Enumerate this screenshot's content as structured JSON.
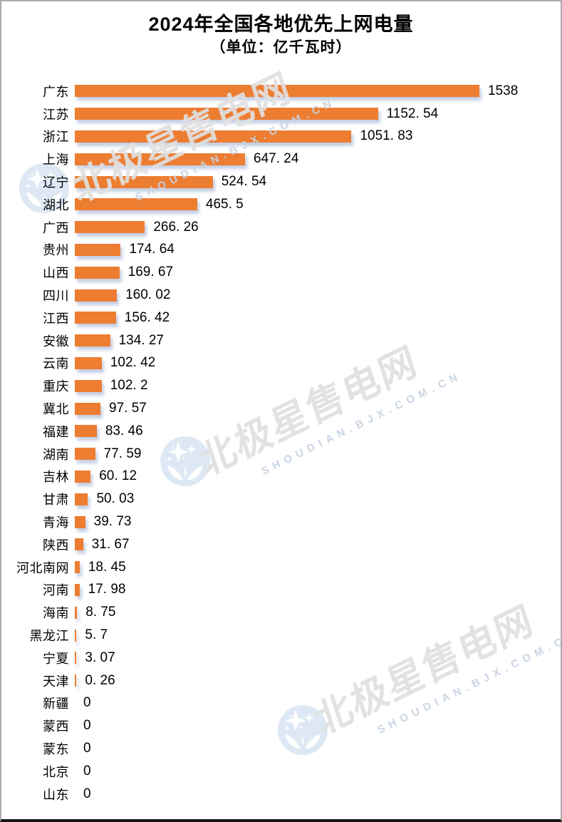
{
  "page": {
    "title": "2024年全国各地优先上网电量",
    "subtitle": "（单位：亿千瓦时）"
  },
  "watermark": {
    "cn": "北极星售电网",
    "en": "SHOUDIAN.BJX.COM.CN",
    "logo": "bjx-star-cloud-logo"
  },
  "colors": {
    "bar": "#ED7D31",
    "bar_shadow": "#96A8D0",
    "watermark_cn": "#E2E2E2",
    "watermark_en": "#C7D3E3",
    "logo_blue": "#D8E5F3",
    "border_light": "#ABABAB",
    "border_dark": "#161616",
    "text": "#000000"
  },
  "chart_data": {
    "type": "bar",
    "orientation": "horizontal",
    "title": "2024年全国各地优先上网电量",
    "unit_label": "（单位：亿千瓦时）",
    "unit": "亿千瓦时",
    "grid": false,
    "legend": false,
    "xlim": [
      0,
      1538
    ],
    "categories": [
      "广东",
      "江苏",
      "浙江",
      "上海",
      "辽宁",
      "湖北",
      "广西",
      "贵州",
      "山西",
      "四川",
      "江西",
      "安徽",
      "云南",
      "重庆",
      "冀北",
      "福建",
      "湖南",
      "吉林",
      "甘肃",
      "青海",
      "陕西",
      "河北南网",
      "河南",
      "海南",
      "黑龙江",
      "宁夏",
      "天津",
      "新疆",
      "蒙西",
      "蒙东",
      "北京",
      "山东"
    ],
    "values": [
      1538,
      1152.54,
      1051.83,
      647.24,
      524.54,
      465.5,
      266.26,
      174.64,
      169.67,
      160.02,
      156.42,
      134.27,
      102.42,
      102.2,
      97.57,
      83.46,
      77.59,
      60.12,
      50.03,
      39.73,
      31.67,
      18.45,
      17.98,
      8.75,
      5.7,
      3.07,
      0.26,
      0,
      0,
      0,
      0,
      0
    ],
    "value_labels": [
      "1538",
      "1152. 54",
      "1051. 83",
      "647. 24",
      "524. 54",
      "465. 5",
      "266. 26",
      "174. 64",
      "169. 67",
      "160. 02",
      "156. 42",
      "134. 27",
      "102. 42",
      "102. 2",
      "97. 57",
      "83. 46",
      "77. 59",
      "60. 12",
      "50. 03",
      "39. 73",
      "31. 67",
      "18. 45",
      "17. 98",
      "8. 75",
      "5. 7",
      "3. 07",
      "0. 26",
      "0",
      "0",
      "0",
      "0",
      "0"
    ]
  }
}
